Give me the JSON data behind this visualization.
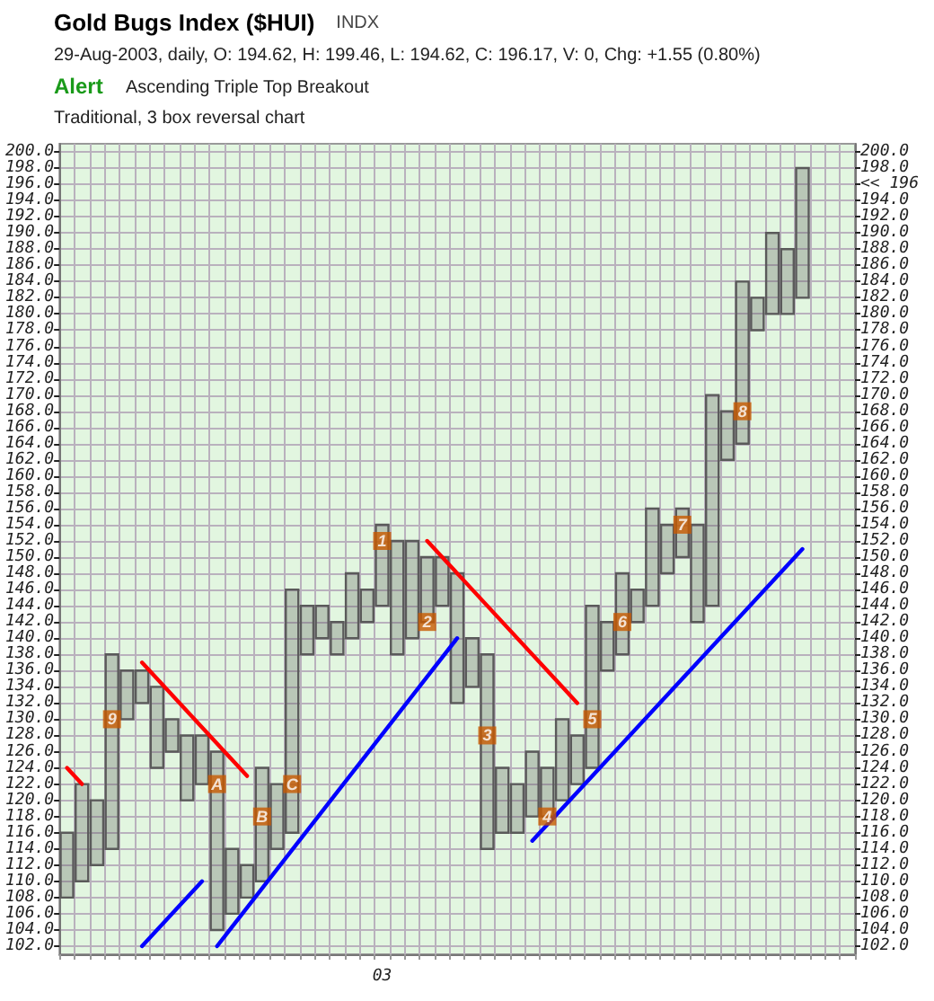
{
  "chart_data": {
    "type": "bar",
    "title": "Gold Bugs Index ($HUI)",
    "subtitle": "29-Aug-2003, daily, O: 194.62, H: 199.46, L: 194.62, C: 196.17, V: 0, Chg: +1.55 (0.80%)",
    "annotations": [
      "INDX",
      "Alert",
      "Ascending Triple Top Breakout",
      "Traditional, 3 box reversal chart"
    ],
    "categories": [
      null,
      null,
      null,
      null,
      null,
      null,
      null,
      null,
      null,
      null,
      null,
      null,
      null,
      null,
      null,
      null,
      null,
      null,
      null,
      null,
      null,
      "03",
      null,
      null,
      null,
      null,
      null,
      null,
      null,
      null,
      null,
      null,
      null,
      null,
      null,
      null,
      null,
      null,
      null,
      null,
      null,
      null,
      null,
      null,
      null,
      null,
      null,
      null,
      null,
      null,
      null,
      null,
      null
    ],
    "series": [
      {
        "color": "#5a5a5a",
        "base": [
          108,
          110,
          112,
          114,
          130,
          132,
          124,
          126,
          120,
          122,
          104,
          106,
          108,
          110,
          114,
          116,
          138,
          140,
          138,
          140,
          142,
          144,
          138,
          140,
          142,
          144,
          132,
          134,
          114,
          116,
          116,
          118,
          118,
          120,
          122,
          124,
          136,
          138,
          142,
          144,
          148,
          150,
          142,
          144,
          162,
          164,
          178,
          180,
          180,
          182,
          null,
          null,
          null
        ],
        "values": [
          8,
          12,
          8,
          24,
          6,
          4,
          10,
          4,
          8,
          6,
          22,
          8,
          4,
          14,
          8,
          30,
          6,
          4,
          4,
          8,
          4,
          10,
          14,
          12,
          8,
          6,
          16,
          6,
          24,
          8,
          6,
          8,
          6,
          10,
          6,
          20,
          6,
          10,
          4,
          12,
          6,
          6,
          12,
          26,
          6,
          20,
          4,
          10,
          8,
          16,
          null,
          null,
          null
        ]
      },
      {
        "type": "scatter",
        "name": "9",
        "marker": "square",
        "color": "#c85a00",
        "values": [
          null,
          null,
          null,
          130,
          null,
          null,
          null,
          null,
          null,
          null,
          null,
          null,
          null,
          null,
          null,
          null,
          null,
          null,
          null,
          null,
          null,
          null,
          null,
          null,
          null,
          null,
          null,
          null,
          null,
          null,
          null,
          null,
          null,
          null,
          null,
          null,
          null,
          null,
          null,
          null,
          null,
          null,
          null,
          null,
          null,
          null,
          null,
          null,
          null,
          null,
          null,
          null,
          null
        ]
      },
      {
        "type": "scatter",
        "name": "A",
        "marker": "square",
        "color": "#c85a00",
        "values": [
          null,
          null,
          null,
          null,
          null,
          null,
          null,
          null,
          null,
          null,
          122,
          null,
          null,
          null,
          null,
          null,
          null,
          null,
          null,
          null,
          null,
          null,
          null,
          null,
          null,
          null,
          null,
          null,
          null,
          null,
          null,
          null,
          null,
          null,
          null,
          null,
          null,
          null,
          null,
          null,
          null,
          null,
          null,
          null,
          null,
          null,
          null,
          null,
          null,
          null,
          null,
          null,
          null
        ]
      },
      {
        "type": "scatter",
        "name": "B",
        "marker": "square",
        "color": "#c85a00",
        "values": [
          null,
          null,
          null,
          null,
          null,
          null,
          null,
          null,
          null,
          null,
          null,
          null,
          null,
          118,
          null,
          null,
          null,
          null,
          null,
          null,
          null,
          null,
          null,
          null,
          null,
          null,
          null,
          null,
          null,
          null,
          null,
          null,
          null,
          null,
          null,
          null,
          null,
          null,
          null,
          null,
          null,
          null,
          null,
          null,
          null,
          null,
          null,
          null,
          null,
          null,
          null,
          null,
          null
        ]
      },
      {
        "type": "scatter",
        "name": "C",
        "marker": "square",
        "color": "#c85a00",
        "values": [
          null,
          null,
          null,
          null,
          null,
          null,
          null,
          null,
          null,
          null,
          null,
          null,
          null,
          null,
          null,
          122,
          null,
          null,
          null,
          null,
          null,
          null,
          null,
          null,
          null,
          null,
          null,
          null,
          null,
          null,
          null,
          null,
          null,
          null,
          null,
          null,
          null,
          null,
          null,
          null,
          null,
          null,
          null,
          null,
          null,
          null,
          null,
          null,
          null,
          null,
          null,
          null,
          null
        ]
      },
      {
        "type": "scatter",
        "name": "1",
        "marker": "square",
        "color": "#c85a00",
        "values": [
          null,
          null,
          null,
          null,
          null,
          null,
          null,
          null,
          null,
          null,
          null,
          null,
          null,
          null,
          null,
          null,
          null,
          null,
          null,
          null,
          null,
          152,
          null,
          null,
          null,
          null,
          null,
          null,
          null,
          null,
          null,
          null,
          null,
          null,
          null,
          null,
          null,
          null,
          null,
          null,
          null,
          null,
          null,
          null,
          null,
          null,
          null,
          null,
          null,
          null,
          null,
          null,
          null
        ]
      },
      {
        "type": "scatter",
        "name": "2",
        "marker": "square",
        "color": "#c85a00",
        "values": [
          null,
          null,
          null,
          null,
          null,
          null,
          null,
          null,
          null,
          null,
          null,
          null,
          null,
          null,
          null,
          null,
          null,
          null,
          null,
          null,
          null,
          null,
          null,
          null,
          142,
          null,
          null,
          null,
          null,
          null,
          null,
          null,
          null,
          null,
          null,
          null,
          null,
          null,
          null,
          null,
          null,
          null,
          null,
          null,
          null,
          null,
          null,
          null,
          null,
          null,
          null,
          null,
          null
        ]
      },
      {
        "type": "scatter",
        "name": "3",
        "marker": "square",
        "color": "#c85a00",
        "values": [
          null,
          null,
          null,
          null,
          null,
          null,
          null,
          null,
          null,
          null,
          null,
          null,
          null,
          null,
          null,
          null,
          null,
          null,
          null,
          null,
          null,
          null,
          null,
          null,
          null,
          null,
          null,
          null,
          128,
          null,
          null,
          null,
          null,
          null,
          null,
          null,
          null,
          null,
          null,
          null,
          null,
          null,
          null,
          null,
          null,
          null,
          null,
          null,
          null,
          null,
          null,
          null,
          null
        ]
      },
      {
        "type": "scatter",
        "name": "4",
        "marker": "square",
        "color": "#c85a00",
        "values": [
          null,
          null,
          null,
          null,
          null,
          null,
          null,
          null,
          null,
          null,
          null,
          null,
          null,
          null,
          null,
          null,
          null,
          null,
          null,
          null,
          null,
          null,
          null,
          null,
          null,
          null,
          null,
          null,
          null,
          null,
          null,
          null,
          118,
          null,
          null,
          null,
          null,
          null,
          null,
          null,
          null,
          null,
          null,
          null,
          null,
          null,
          null,
          null,
          null,
          null,
          null,
          null,
          null
        ]
      },
      {
        "type": "scatter",
        "name": "5",
        "marker": "square",
        "color": "#c85a00",
        "values": [
          null,
          null,
          null,
          null,
          null,
          null,
          null,
          null,
          null,
          null,
          null,
          null,
          null,
          null,
          null,
          null,
          null,
          null,
          null,
          null,
          null,
          null,
          null,
          null,
          null,
          null,
          null,
          null,
          null,
          null,
          null,
          null,
          null,
          null,
          null,
          130,
          null,
          null,
          null,
          null,
          null,
          null,
          null,
          null,
          null,
          null,
          null,
          null,
          null,
          null,
          null,
          null,
          null
        ]
      },
      {
        "type": "scatter",
        "name": "6",
        "marker": "square",
        "color": "#c85a00",
        "values": [
          null,
          null,
          null,
          null,
          null,
          null,
          null,
          null,
          null,
          null,
          null,
          null,
          null,
          null,
          null,
          null,
          null,
          null,
          null,
          null,
          null,
          null,
          null,
          null,
          null,
          null,
          null,
          null,
          null,
          null,
          null,
          null,
          null,
          null,
          null,
          null,
          null,
          142,
          null,
          null,
          null,
          null,
          null,
          null,
          null,
          null,
          null,
          null,
          null,
          null,
          null,
          null,
          null
        ]
      },
      {
        "type": "scatter",
        "name": "7",
        "marker": "square",
        "color": "#c85a00",
        "values": [
          null,
          null,
          null,
          null,
          null,
          null,
          null,
          null,
          null,
          null,
          null,
          null,
          null,
          null,
          null,
          null,
          null,
          null,
          null,
          null,
          null,
          null,
          null,
          null,
          null,
          null,
          null,
          null,
          null,
          null,
          null,
          null,
          null,
          null,
          null,
          null,
          null,
          null,
          null,
          null,
          null,
          154,
          null,
          null,
          null,
          null,
          null,
          null,
          null,
          null,
          null,
          null,
          null
        ]
      },
      {
        "type": "scatter",
        "name": "8",
        "marker": "square",
        "color": "#c85a00",
        "values": [
          null,
          null,
          null,
          null,
          null,
          null,
          null,
          null,
          null,
          null,
          null,
          null,
          null,
          null,
          null,
          null,
          null,
          null,
          null,
          null,
          null,
          null,
          null,
          null,
          null,
          null,
          null,
          null,
          null,
          null,
          null,
          null,
          null,
          null,
          null,
          null,
          null,
          null,
          null,
          null,
          null,
          null,
          null,
          null,
          null,
          168,
          null,
          null,
          null,
          null,
          null,
          null,
          null
        ]
      },
      {
        "type": "line",
        "color": "#ff0000",
        "values": [
          124,
          122,
          null,
          null,
          null,
          null,
          null,
          null,
          null,
          null,
          null,
          null,
          null,
          null,
          null,
          null,
          null,
          null,
          null,
          null,
          null,
          null,
          null,
          null,
          null,
          null,
          null,
          null,
          null,
          null,
          null,
          null,
          null,
          null,
          null,
          null,
          null,
          null,
          null,
          null,
          null,
          null,
          null,
          null,
          null,
          null,
          null,
          null,
          null,
          null,
          null,
          null,
          null
        ]
      },
      {
        "type": "line",
        "color": "#ff0000",
        "values": [
          null,
          null,
          null,
          null,
          null,
          137,
          null,
          null,
          null,
          null,
          null,
          null,
          123,
          null,
          null,
          null,
          null,
          null,
          null,
          null,
          null,
          null,
          null,
          null,
          null,
          null,
          null,
          null,
          null,
          null,
          null,
          null,
          null,
          null,
          null,
          null,
          null,
          null,
          null,
          null,
          null,
          null,
          null,
          null,
          null,
          null,
          null,
          null,
          null,
          null,
          null,
          null,
          null
        ]
      },
      {
        "type": "line",
        "color": "#ff0000",
        "values": [
          null,
          null,
          null,
          null,
          null,
          null,
          null,
          null,
          null,
          null,
          null,
          null,
          null,
          null,
          null,
          null,
          null,
          null,
          null,
          null,
          null,
          null,
          null,
          null,
          152,
          null,
          null,
          null,
          null,
          null,
          null,
          null,
          null,
          null,
          132,
          null,
          null,
          null,
          null,
          null,
          null,
          null,
          null,
          null,
          null,
          null,
          null,
          null,
          null,
          null,
          null,
          null,
          null
        ]
      },
      {
        "type": "line",
        "color": "#0000ff",
        "values": [
          null,
          null,
          null,
          null,
          null,
          102,
          null,
          null,
          null,
          110,
          null,
          null,
          null,
          null,
          null,
          null,
          null,
          null,
          null,
          null,
          null,
          null,
          null,
          null,
          null,
          null,
          null,
          null,
          null,
          null,
          null,
          null,
          null,
          null,
          null,
          null,
          null,
          null,
          null,
          null,
          null,
          null,
          null,
          null,
          null,
          null,
          null,
          null,
          null,
          null,
          null,
          null,
          null
        ]
      },
      {
        "type": "line",
        "color": "#0000ff",
        "values": [
          null,
          null,
          null,
          null,
          null,
          null,
          null,
          null,
          null,
          null,
          102,
          null,
          null,
          null,
          null,
          null,
          null,
          null,
          null,
          null,
          null,
          null,
          null,
          null,
          null,
          null,
          140,
          null,
          null,
          null,
          null,
          null,
          null,
          null,
          null,
          null,
          null,
          null,
          null,
          null,
          null,
          null,
          null,
          null,
          null,
          null,
          null,
          null,
          null,
          null,
          null,
          null,
          null
        ]
      },
      {
        "type": "line",
        "color": "#0000ff",
        "values": [
          null,
          null,
          null,
          null,
          null,
          null,
          null,
          null,
          null,
          null,
          null,
          null,
          null,
          null,
          null,
          null,
          null,
          null,
          null,
          null,
          null,
          null,
          null,
          null,
          null,
          null,
          null,
          null,
          null,
          null,
          null,
          115,
          null,
          null,
          null,
          null,
          null,
          null,
          null,
          null,
          null,
          null,
          null,
          null,
          null,
          null,
          null,
          null,
          null,
          151,
          null,
          null,
          null
        ]
      }
    ],
    "marker": "none",
    "line_style": "solid",
    "grid": true,
    "legend": false,
    "ylim": [
      101,
      201
    ],
    "yticks": [
      {
        "value": 102,
        "label": "102.0"
      },
      {
        "value": 104,
        "label": "104.0"
      },
      {
        "value": 106,
        "label": "106.0"
      },
      {
        "value": 108,
        "label": "108.0"
      },
      {
        "value": 110,
        "label": "110.0"
      },
      {
        "value": 112,
        "label": "112.0"
      },
      {
        "value": 114,
        "label": "114.0"
      },
      {
        "value": 116,
        "label": "116.0"
      },
      {
        "value": 118,
        "label": "118.0"
      },
      {
        "value": 120,
        "label": "120.0"
      },
      {
        "value": 122,
        "label": "122.0"
      },
      {
        "value": 124,
        "label": "124.0"
      },
      {
        "value": 126,
        "label": "126.0"
      },
      {
        "value": 128,
        "label": "128.0"
      },
      {
        "value": 130,
        "label": "130.0"
      },
      {
        "value": 132,
        "label": "132.0"
      },
      {
        "value": 134,
        "label": "134.0"
      },
      {
        "value": 136,
        "label": "136.0"
      },
      {
        "value": 138,
        "label": "138.0"
      },
      {
        "value": 140,
        "label": "140.0"
      },
      {
        "value": 142,
        "label": "142.0"
      },
      {
        "value": 144,
        "label": "144.0"
      },
      {
        "value": 146,
        "label": "146.0"
      },
      {
        "value": 148,
        "label": "148.0"
      },
      {
        "value": 150,
        "label": "150.0"
      },
      {
        "value": 152,
        "label": "152.0"
      },
      {
        "value": 154,
        "label": "154.0"
      },
      {
        "value": 156,
        "label": "156.0"
      },
      {
        "value": 158,
        "label": "158.0"
      },
      {
        "value": 160,
        "label": "160.0"
      },
      {
        "value": 162,
        "label": "162.0"
      },
      {
        "value": 164,
        "label": "164.0"
      },
      {
        "value": 166,
        "label": "166.0"
      },
      {
        "value": 168,
        "label": "168.0"
      },
      {
        "value": 170,
        "label": "170.0"
      },
      {
        "value": 172,
        "label": "172.0"
      },
      {
        "value": 174,
        "label": "174.0"
      },
      {
        "value": 176,
        "label": "176.0"
      },
      {
        "value": 178,
        "label": "178.0"
      },
      {
        "value": 180,
        "label": "180.0"
      },
      {
        "value": 182,
        "label": "182.0"
      },
      {
        "value": 184,
        "label": "184.0"
      },
      {
        "value": 186,
        "label": "186.0"
      },
      {
        "value": 188,
        "label": "188.0"
      },
      {
        "value": 190,
        "label": "190.0"
      },
      {
        "value": 192,
        "label": "192.0"
      },
      {
        "value": 194,
        "label": "194.0"
      },
      {
        "value": 196,
        "label": "196.0"
      },
      {
        "value": 198,
        "label": "198.0"
      },
      {
        "value": 200,
        "label": "200.0"
      }
    ],
    "y2lim": [
      101,
      201
    ],
    "y2ticks": [
      {
        "value": 102,
        "label": "102.0"
      },
      {
        "value": 104,
        "label": "104.0"
      },
      {
        "value": 106,
        "label": "106.0"
      },
      {
        "value": 108,
        "label": "108.0"
      },
      {
        "value": 110,
        "label": "110.0"
      },
      {
        "value": 112,
        "label": "112.0"
      },
      {
        "value": 114,
        "label": "114.0"
      },
      {
        "value": 116,
        "label": "116.0"
      },
      {
        "value": 118,
        "label": "118.0"
      },
      {
        "value": 120,
        "label": "120.0"
      },
      {
        "value": 122,
        "label": "122.0"
      },
      {
        "value": 124,
        "label": "124.0"
      },
      {
        "value": 126,
        "label": "126.0"
      },
      {
        "value": 128,
        "label": "128.0"
      },
      {
        "value": 130,
        "label": "130.0"
      },
      {
        "value": 132,
        "label": "132.0"
      },
      {
        "value": 134,
        "label": "134.0"
      },
      {
        "value": 136,
        "label": "136.0"
      },
      {
        "value": 138,
        "label": "138.0"
      },
      {
        "value": 140,
        "label": "140.0"
      },
      {
        "value": 142,
        "label": "142.0"
      },
      {
        "value": 144,
        "label": "144.0"
      },
      {
        "value": 146,
        "label": "146.0"
      },
      {
        "value": 148,
        "label": "148.0"
      },
      {
        "value": 150,
        "label": "150.0"
      },
      {
        "value": 152,
        "label": "152.0"
      },
      {
        "value": 154,
        "label": "154.0"
      },
      {
        "value": 156,
        "label": "156.0"
      },
      {
        "value": 158,
        "label": "158.0"
      },
      {
        "value": 160,
        "label": "160.0"
      },
      {
        "value": 162,
        "label": "162.0"
      },
      {
        "value": 164,
        "label": "164.0"
      },
      {
        "value": 166,
        "label": "166.0"
      },
      {
        "value": 168,
        "label": "168.0"
      },
      {
        "value": 170,
        "label": "170.0"
      },
      {
        "value": 172,
        "label": "172.0"
      },
      {
        "value": 174,
        "label": "174.0"
      },
      {
        "value": 176,
        "label": "176.0"
      },
      {
        "value": 178,
        "label": "178.0"
      },
      {
        "value": 180,
        "label": "180.0"
      },
      {
        "value": 182,
        "label": "182.0"
      },
      {
        "value": 184,
        "label": "184.0"
      },
      {
        "value": 186,
        "label": "186.0"
      },
      {
        "value": 188,
        "label": "188.0"
      },
      {
        "value": 190,
        "label": "190.0"
      },
      {
        "value": 192,
        "label": "192.0"
      },
      {
        "value": 194,
        "label": "194.0"
      },
      {
        "value": 196,
        "label": "<< 196"
      },
      {
        "value": 198,
        "label": "198.0"
      },
      {
        "value": 200,
        "label": "200.0"
      }
    ]
  }
}
